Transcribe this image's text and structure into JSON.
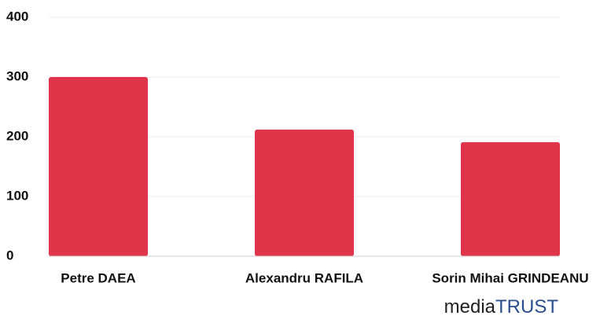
{
  "chart_data": {
    "type": "bar",
    "categories": [
      "Petre DAEA",
      "Alexandru RAFILA",
      "Sorin Mihai GRINDEANU"
    ],
    "values": [
      300,
      212,
      191
    ],
    "color": "#e0344b",
    "ylim": [
      0,
      400
    ],
    "yticks": [
      0,
      100,
      200,
      300,
      400
    ],
    "grid": true,
    "watermark": [
      "media",
      "TRUST"
    ]
  }
}
